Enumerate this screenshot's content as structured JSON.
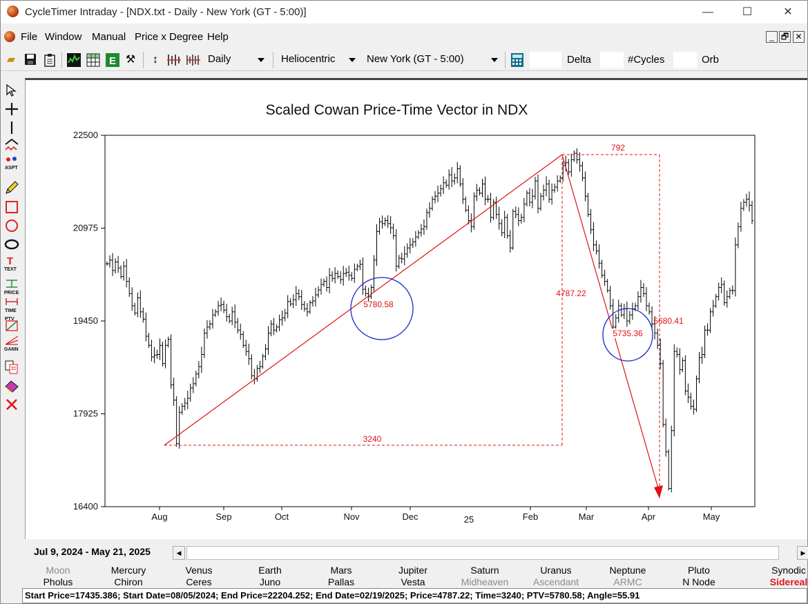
{
  "window": {
    "title": "CycleTimer Intraday - [NDX.txt - Daily - New York (GT - 5:00)]",
    "min_glyph": "—",
    "max_glyph": "☐",
    "close_glyph": "✕"
  },
  "menu": {
    "items": [
      "File",
      "Window",
      "Manual",
      "Price x Degree",
      "Help"
    ],
    "mdi_min": "_",
    "mdi_restore": "🗗",
    "mdi_close": "✕"
  },
  "toolbar": {
    "timeframe": "Daily",
    "coordinate": "Heliocentric",
    "location": "New York (GT - 5:00)",
    "delta_label": "Delta",
    "cycles_label": "#Cycles",
    "orb_label": "Orb"
  },
  "chart_data": {
    "type": "ohlc-bar",
    "title": "Scaled Cowan Price-Time Vector in NDX",
    "y_ticks": [
      "22500",
      "20975",
      "19450",
      "17925",
      "16400"
    ],
    "ylim": [
      16400,
      22500
    ],
    "x_month_labels": [
      "Aug",
      "Sep",
      "Oct",
      "Nov",
      "Dec",
      "Feb",
      "Mar",
      "Apr",
      "May"
    ],
    "x_year_label": "25",
    "series": [
      {
        "values": [
          20390,
          20450,
          20280,
          20420,
          20320,
          20180,
          20350,
          20100,
          19900,
          19700,
          19580,
          19830,
          19600,
          19480,
          19200,
          19050,
          18860,
          18890,
          18900,
          19050,
          18750,
          19050,
          19150,
          18400,
          18150,
          17435,
          17950,
          18050,
          18100,
          18180,
          18350,
          18420,
          18580,
          18700,
          18900,
          19250,
          19350,
          19400,
          19550,
          19600,
          19700,
          19720,
          19630,
          19520,
          19450,
          19600,
          19430,
          19300,
          19230,
          19050,
          18950,
          18830,
          18550,
          18500,
          18670,
          18700,
          18870,
          18990,
          19250,
          19400,
          19300,
          19350,
          19470,
          19500,
          19580,
          19770,
          19730,
          19800,
          19900,
          19850,
          19720,
          19650,
          19600,
          19750,
          19780,
          19880,
          19960,
          20050,
          20100,
          20000,
          20200,
          20150,
          20230,
          20180,
          20130,
          20230,
          20250,
          20200,
          20150,
          20300,
          20350,
          20380,
          19970,
          19900,
          19850,
          20000,
          20450,
          20920,
          21080,
          21050,
          21100,
          21050,
          20980,
          20850,
          20350,
          20480,
          20470,
          20550,
          20650,
          20700,
          20750,
          20830,
          20900,
          20960,
          21000,
          21230,
          21300,
          21450,
          21500,
          21550,
          21620,
          21720,
          21680,
          21850,
          21750,
          21800,
          21950,
          21700,
          21450,
          21270,
          21100,
          21000,
          21500,
          21600,
          21550,
          21700,
          21450,
          21450,
          21150,
          21400,
          21200,
          21050,
          20900,
          21150,
          20850,
          20650,
          21250,
          21200,
          21100,
          21150,
          21370,
          21550,
          21400,
          21500,
          21750,
          21300,
          21500,
          21600,
          21700,
          21450,
          21600,
          21650,
          21750,
          21800,
          22000,
          22050,
          21900,
          22100,
          22204,
          22100,
          22000,
          21800,
          21500,
          21200,
          20950,
          20700,
          20600,
          20400,
          20200,
          20100,
          19950,
          19700,
          19350,
          19500,
          19700,
          19550,
          19650,
          19450,
          19550,
          19650,
          19700,
          19850,
          20000,
          19900,
          19700,
          19600,
          19400,
          19250,
          19050,
          18750,
          17750,
          17300,
          16700,
          17650,
          18950,
          18900,
          18650,
          18800,
          18300,
          18200,
          18050,
          18000,
          18500,
          18850,
          18900,
          19300,
          19300,
          19600,
          19700,
          19850,
          20000,
          20050,
          19750,
          19850,
          19950,
          19950,
          20700,
          21000,
          21300,
          21400,
          21450,
          21350,
          21100
        ]
      }
    ],
    "annotations": {
      "vector1_label": "5780.58",
      "vector2_label": "5735.36",
      "time1_label": "3240",
      "time2_label": "792",
      "price1_label": "4787.22",
      "price2_label": "5680.41"
    },
    "colors": {
      "bars": "#000000",
      "vector": "#e01010",
      "circle": "#1a22c8",
      "frame": "#000000"
    },
    "grid": false
  },
  "daterange": {
    "text": "Jul 9, 2024  - May 21, 2025"
  },
  "planets": [
    {
      "p1": "Moon",
      "p2": "Pholus",
      "gray1": true,
      "gray2": false
    },
    {
      "p1": "Mercury",
      "p2": "Chiron",
      "gray1": false,
      "gray2": false
    },
    {
      "p1": "Venus",
      "p2": "Ceres",
      "gray1": false,
      "gray2": false
    },
    {
      "p1": "Earth",
      "p2": "Juno",
      "gray1": false,
      "gray2": false
    },
    {
      "p1": "Mars",
      "p2": "Pallas",
      "gray1": false,
      "gray2": false
    },
    {
      "p1": "Jupiter",
      "p2": "Vesta",
      "gray1": false,
      "gray2": false
    },
    {
      "p1": "Saturn",
      "p2": "Midheaven",
      "gray1": false,
      "gray2": true
    },
    {
      "p1": "Uranus",
      "p2": "Ascendant",
      "gray1": false,
      "gray2": true
    },
    {
      "p1": "Neptune",
      "p2": "ARMC",
      "gray1": false,
      "gray2": true
    },
    {
      "p1": "Pluto",
      "p2": "N Node",
      "gray1": false,
      "gray2": false
    },
    {
      "p1": "Synodic",
      "p2": "Sidereal",
      "gray1": false,
      "gray2": false,
      "red2": true
    }
  ],
  "status": {
    "text": "Start Price=17435.386;  Start Date=08/05/2024;  End Price=22204.252;  End Date=02/19/2025;  Price=4787.22;  Time=3240;  PTV=5780.58;  Angle=55.91"
  }
}
